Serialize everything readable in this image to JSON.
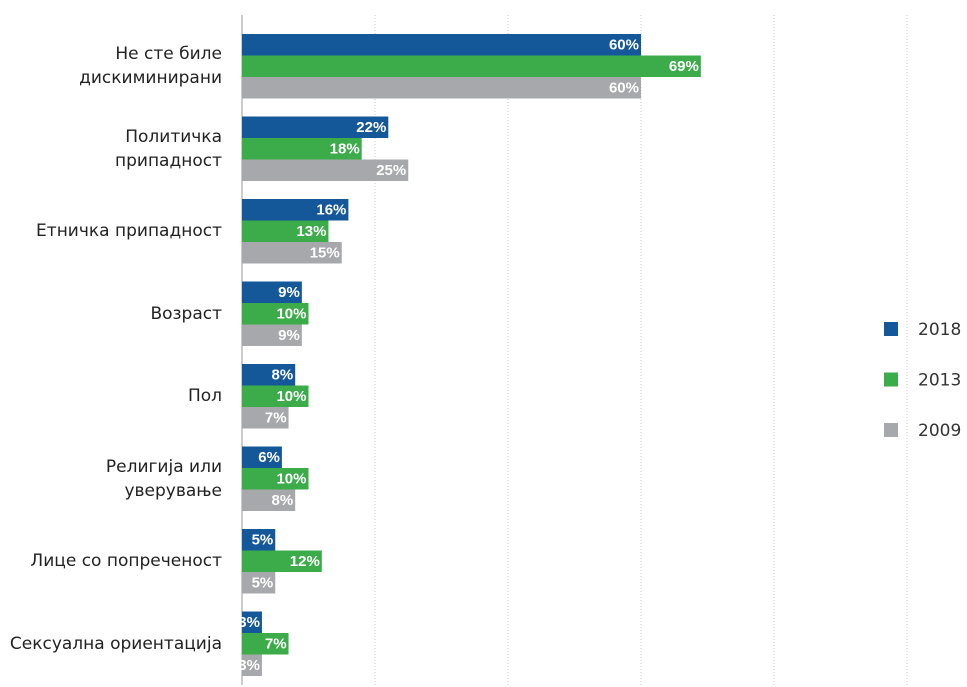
{
  "chart_data": {
    "type": "hbar",
    "categories": [
      "Не сте биле\nдискиминирани",
      "Политичка\nприпадност",
      "Етничка припадност",
      "Возраст",
      "Пол",
      "Религија или\nуверување",
      "Лице со попреченост",
      "Сексуална ориентација"
    ],
    "series": [
      {
        "name": "2018",
        "color": "#15589a",
        "values": [
          60,
          22,
          16,
          9,
          8,
          6,
          5,
          3
        ],
        "value_labels": [
          "60%",
          "22%",
          "16%",
          "9%",
          "8%",
          "6%",
          "5%",
          "3%"
        ]
      },
      {
        "name": "2013",
        "color": "#3cab4a",
        "values": [
          69,
          18,
          13,
          10,
          10,
          10,
          12,
          7
        ],
        "value_labels": [
          "69%",
          "18%",
          "13%",
          "10%",
          "10%",
          "10%",
          "12%",
          "7%"
        ]
      },
      {
        "name": "2009",
        "color": "#a7a8ab",
        "values": [
          60,
          25,
          15,
          9,
          7,
          8,
          5,
          3
        ],
        "value_labels": [
          "60%",
          "25%",
          "15%",
          "9%",
          "7%",
          "8%",
          "5%",
          "3%"
        ]
      }
    ],
    "xlim": [
      0,
      100
    ],
    "xticks": [
      20,
      40,
      60,
      80,
      100
    ],
    "grid": true,
    "legend": "right"
  }
}
